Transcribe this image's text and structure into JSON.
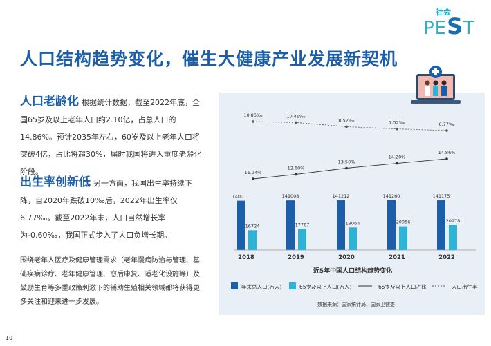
{
  "logo": {
    "small": "社会",
    "big_pre": "PE",
    "big_s": "S",
    "big_post": "T"
  },
  "title": "人口结构趋势变化，催生大健康产业发展新契机",
  "sections": [
    {
      "heading": "人口老龄化",
      "text": "根据统计数据，截至2022年底，全国65岁及以上老年人口约2.10亿，占总人口的14.86%。预计2035年左右，60岁及以上老年人口将突破4亿，占比将超30%，届时我国将进入重度老龄化阶段。"
    },
    {
      "heading": "出生率创新低",
      "text": "另一方面，我国出生率持续下降，自2020年跌破10‰后，2022年出生率仅6.77‰。截至2022年末，人口自然增长率为-0.60‰，我国正式步入了人口负增长期。"
    }
  ],
  "closing": "围绕老年人医疗及健康管理需求（老年慢病防治与管理、基础疾病诊疗、老年健康管理、愈后康复、适老化设施等）及鼓励生育等多重政策刺激下的辅助生殖相关领域都将获得更多关注和迎来进一步发展。",
  "page_number": "10",
  "chart_data": {
    "type": "bar",
    "title": "近5年中国人口结构趋势变化",
    "source": "数据来源：国家统计局、国家卫健委",
    "categories": [
      "2018",
      "2019",
      "2020",
      "2021",
      "2022"
    ],
    "series": [
      {
        "name": "年末总人口(万人)",
        "type": "bar",
        "values": [
          140011,
          141008,
          141212,
          141260,
          141175
        ],
        "labels": [
          "140011",
          "141008",
          "141212",
          "141260",
          "141175"
        ],
        "color": "#1d5ea8"
      },
      {
        "name": "65岁及以上人口(万人)",
        "type": "bar",
        "values": [
          16724,
          17767,
          19064,
          20056,
          20978
        ],
        "labels": [
          "16724",
          "17767",
          "19064",
          "20056",
          "20978"
        ],
        "color": "#2cb3d6"
      },
      {
        "name": "65岁及以上人口占比",
        "type": "line",
        "values": [
          11.94,
          12.6,
          13.5,
          14.2,
          14.86
        ],
        "labels": [
          "11.94%",
          "12.60%",
          "13.50%",
          "14.20%",
          "14.86%"
        ],
        "color": "#333333"
      },
      {
        "name": "人口出生率",
        "type": "line-dashed",
        "values": [
          10.86,
          10.41,
          8.52,
          7.52,
          6.77
        ],
        "labels": [
          "10.86‰",
          "10.41‰",
          "8.52‰",
          "7.52‰",
          "6.77‰"
        ],
        "color": "#555555"
      }
    ],
    "legend_position": "bottom"
  }
}
